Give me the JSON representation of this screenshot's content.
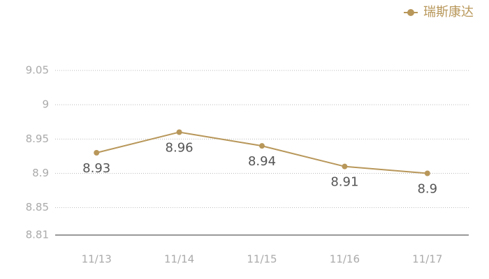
{
  "chart_data": {
    "type": "line",
    "categories": [
      "11/13",
      "11/14",
      "11/15",
      "11/16",
      "11/17"
    ],
    "series": [
      {
        "name": "瑞斯康达",
        "color": "#b8975a",
        "values": [
          8.93,
          8.96,
          8.94,
          8.91,
          8.9
        ]
      }
    ],
    "ylim": [
      8.81,
      9.05
    ],
    "yticks": [
      8.81,
      8.85,
      8.9,
      8.95,
      9,
      9.05
    ],
    "grid": true,
    "legend": "top-right"
  }
}
